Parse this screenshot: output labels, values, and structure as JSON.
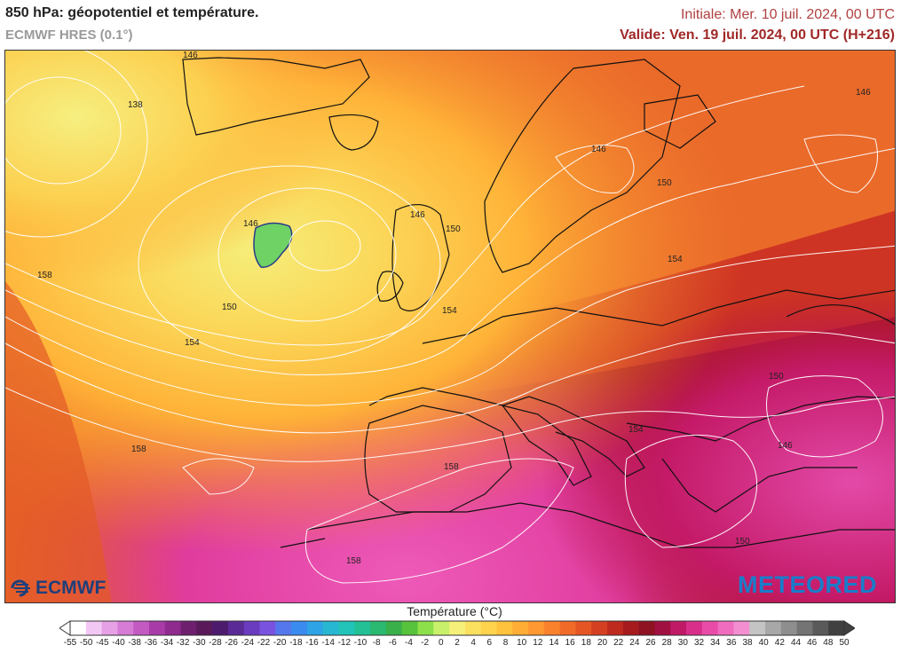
{
  "header": {
    "title": "850 hPa: géopotentiel et température.",
    "model": "ECMWF HRES (0.1°)",
    "init": "Initiale: Mer. 10 juil. 2024, 00 UTC",
    "valid": "Valide: Ven. 19 juil. 2024, 00 UTC (H+216)"
  },
  "logos": {
    "left": "ECMWF",
    "right": "METEORED"
  },
  "colorbar": {
    "title": "Température (°C)",
    "ticks": [
      "-55",
      "-50",
      "-45",
      "-40",
      "-38",
      "-36",
      "-34",
      "-32",
      "-30",
      "-28",
      "-26",
      "-24",
      "-22",
      "-20",
      "-18",
      "-16",
      "-14",
      "-12",
      "-10",
      "-8",
      "-6",
      "-4",
      "-2",
      "0",
      "2",
      "4",
      "6",
      "8",
      "10",
      "12",
      "14",
      "16",
      "18",
      "20",
      "22",
      "24",
      "26",
      "28",
      "30",
      "32",
      "34",
      "36",
      "38",
      "40",
      "42",
      "44",
      "46",
      "48",
      "50"
    ],
    "colors": [
      "#ffffff",
      "#f3c7f3",
      "#e6a0e6",
      "#d67cd6",
      "#c25ac2",
      "#a83ba8",
      "#8f2a8f",
      "#6e1f6e",
      "#5a1a5a",
      "#4d1b6e",
      "#5a2a96",
      "#6a3cbf",
      "#7a52e0",
      "#5577ee",
      "#3a8bef",
      "#2ea4e6",
      "#28b7d2",
      "#22c3b8",
      "#23c096",
      "#2bb870",
      "#39b04a",
      "#57c23c",
      "#8ee04a",
      "#c8f06a",
      "#f5f07a",
      "#fbe060",
      "#ffd34c",
      "#ffc23c",
      "#ffad34",
      "#ff9830",
      "#fb822c",
      "#f26a28",
      "#e55524",
      "#d43f22",
      "#bf2a1e",
      "#a61b1e",
      "#8e1221",
      "#a01040",
      "#c01a66",
      "#d8308a",
      "#e84ca8",
      "#f06cbe",
      "#f38ed0",
      "#c4c4c4",
      "#a8a8a8",
      "#8e8e8e",
      "#747474",
      "#5a5a5a",
      "#404040"
    ]
  },
  "contour_labels": [
    "146",
    "138",
    "146",
    "146",
    "150",
    "158",
    "150",
    "154",
    "154",
    "146",
    "150",
    "154",
    "150",
    "154",
    "158",
    "158",
    "146",
    "150",
    "158",
    "146"
  ]
}
